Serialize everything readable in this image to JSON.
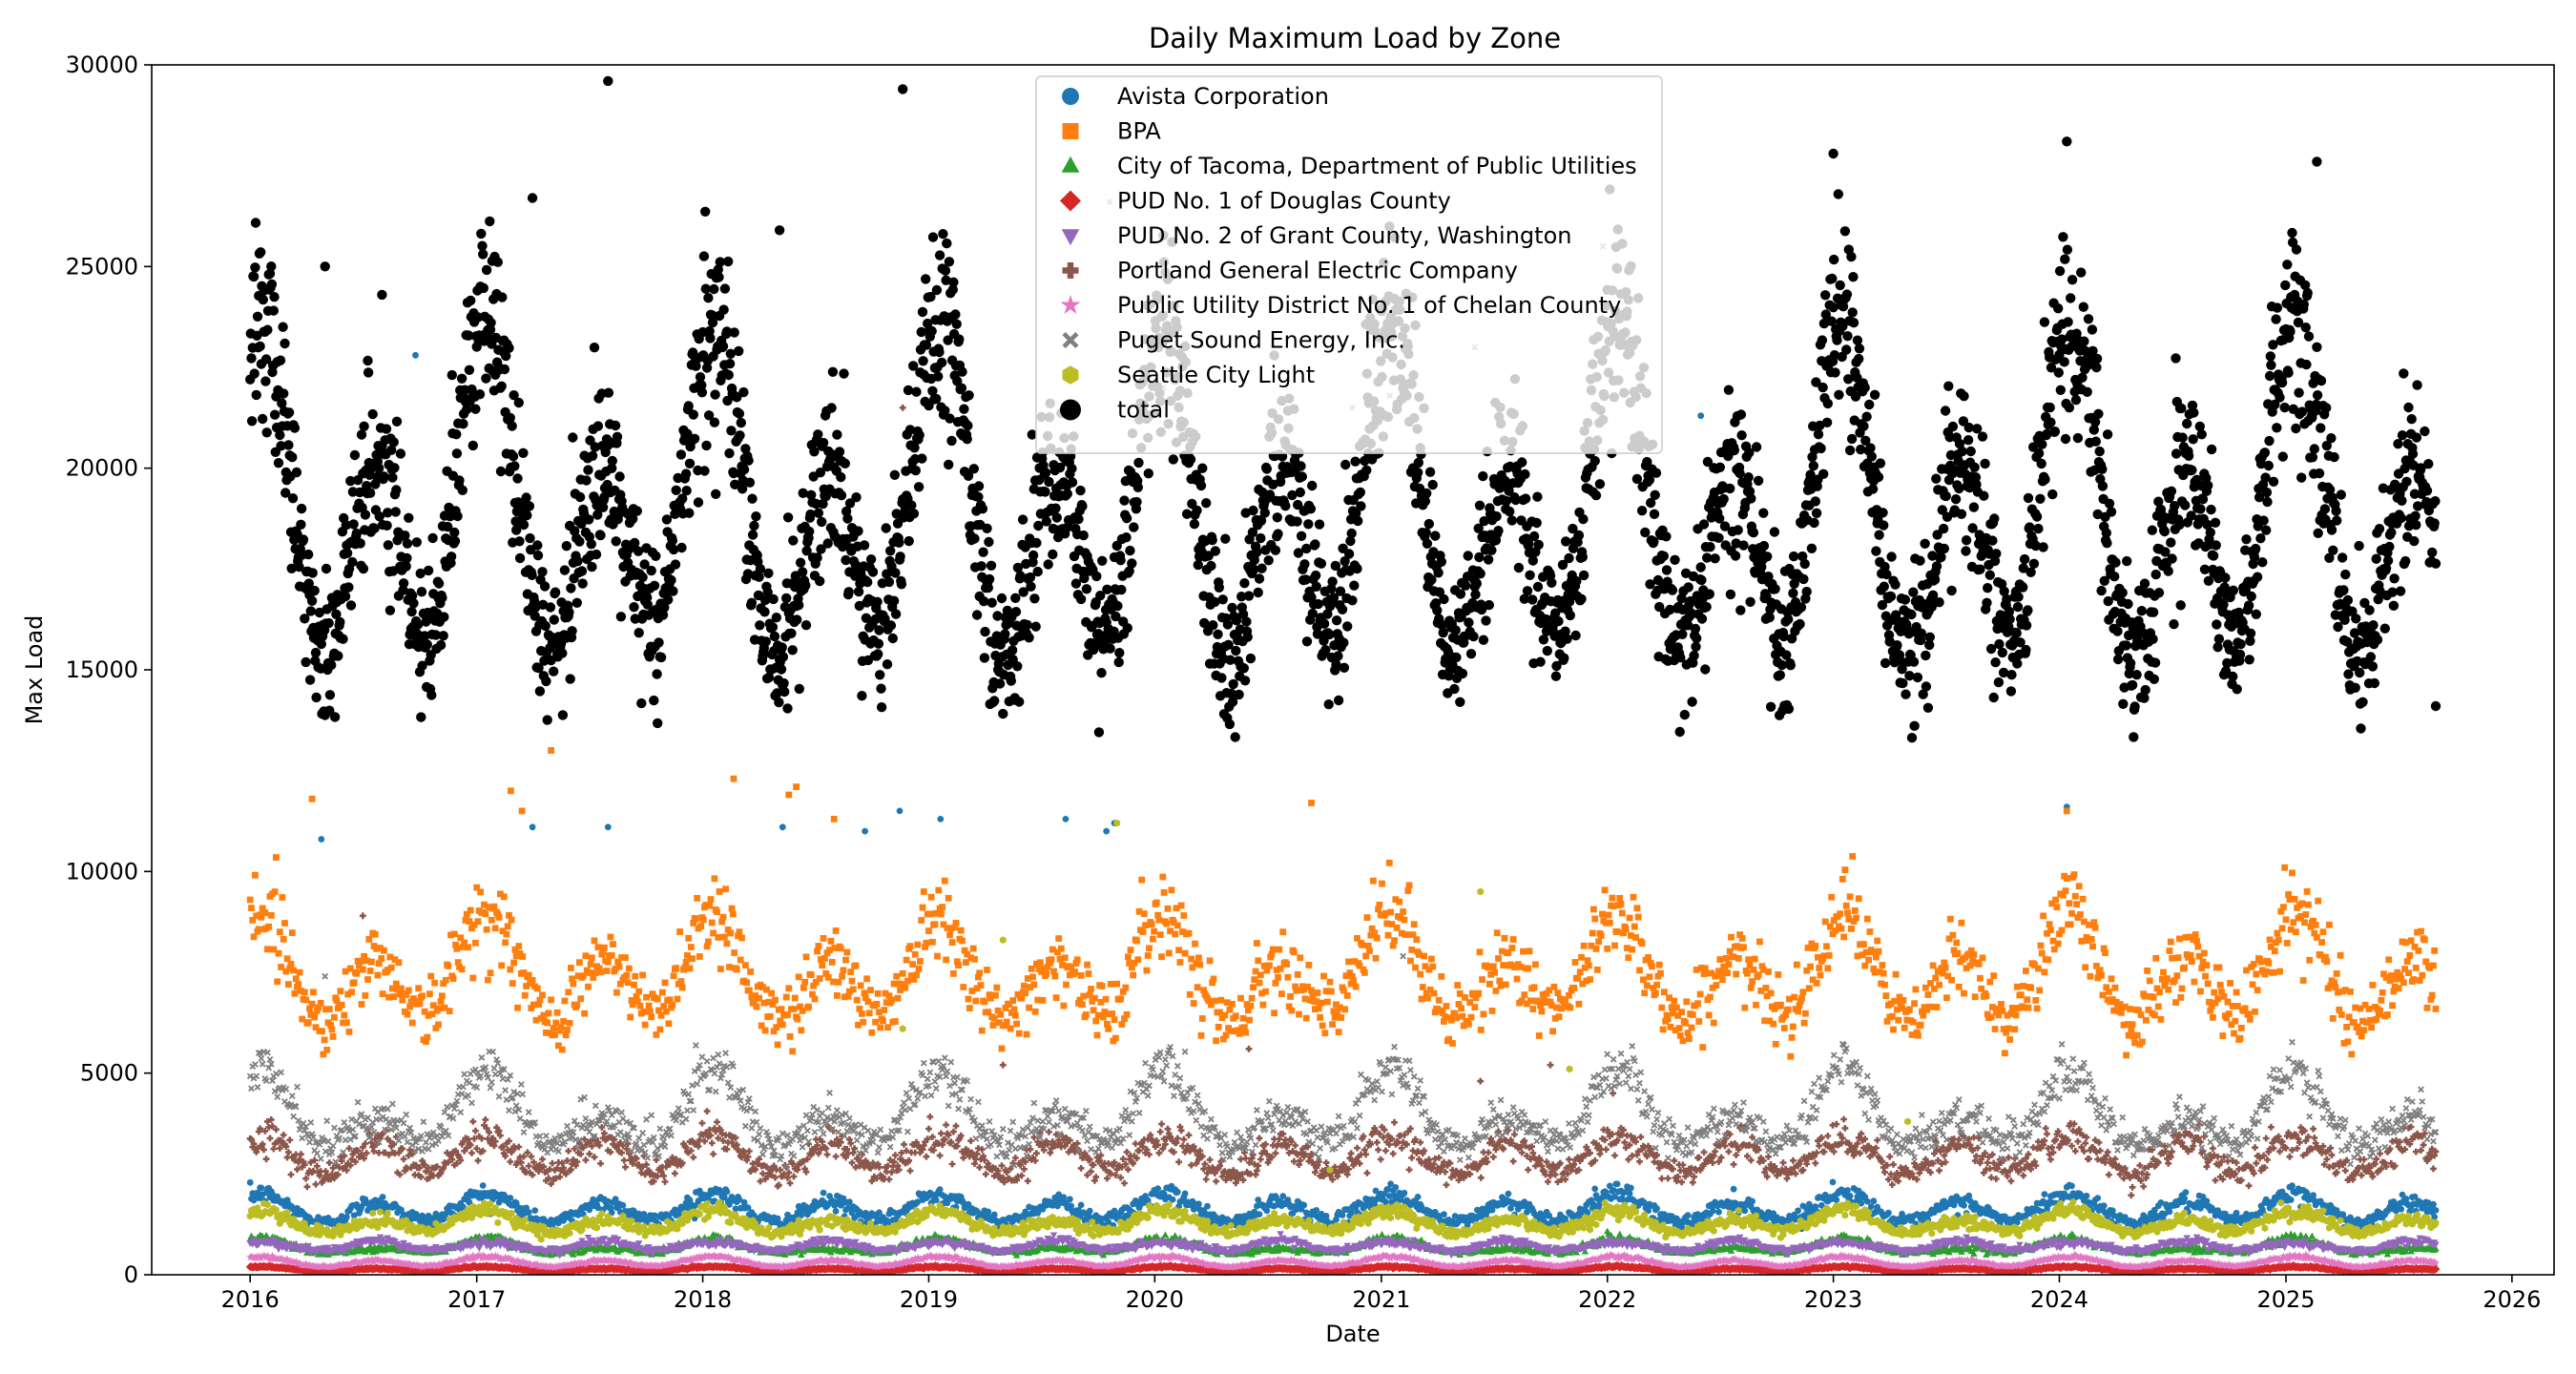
{
  "chart_data": {
    "type": "scatter",
    "title": "Daily Maximum Load by Zone",
    "xlabel": "Date",
    "ylabel": "Max Load",
    "xlim": [
      "2015-07-26",
      "2026-03-10"
    ],
    "ylim": [
      0,
      30000
    ],
    "x_ticks": [
      "2016",
      "2017",
      "2018",
      "2019",
      "2020",
      "2021",
      "2022",
      "2023",
      "2024",
      "2025",
      "2026"
    ],
    "y_ticks": [
      "0",
      "5000",
      "10000",
      "15000",
      "20000",
      "25000",
      "30000"
    ],
    "date_range": [
      "2016-01-01",
      "2025-08-31"
    ],
    "legend_position": "upper center",
    "grid": false,
    "series": [
      {
        "name": "Avista Corporation",
        "marker": "circle",
        "color": "#1f77b4",
        "seasonal_profile": {
          "winter_peak": 2000,
          "spring_trough": 1300,
          "summer_peak": 1800,
          "fall_trough": 1350
        },
        "outliers": [
          [
            "2016-09-24",
            22800
          ],
          [
            "2016-04-25",
            10800
          ],
          [
            "2017-04-01",
            11100
          ],
          [
            "2017-08-01",
            11100
          ],
          [
            "2018-05-10",
            11100
          ],
          [
            "2018-09-20",
            11000
          ],
          [
            "2018-11-15",
            11500
          ],
          [
            "2019-01-20",
            11300
          ],
          [
            "2019-08-10",
            11300
          ],
          [
            "2019-10-15",
            11000
          ],
          [
            "2019-10-28",
            11200
          ],
          [
            "2022-06-01",
            21300
          ],
          [
            "2024-01-13",
            11600
          ]
        ]
      },
      {
        "name": "BPA",
        "marker": "square",
        "color": "#ff7f0e",
        "seasonal_profile": {
          "winter_peak": 9000,
          "spring_trough": 6300,
          "summer_peak": 7800,
          "fall_trough": 6500
        },
        "outliers": [
          [
            "2016-04-10",
            11800
          ],
          [
            "2017-02-25",
            12000
          ],
          [
            "2017-03-15",
            11500
          ],
          [
            "2017-05-01",
            13000
          ],
          [
            "2018-02-20",
            12300
          ],
          [
            "2018-05-20",
            11900
          ],
          [
            "2018-06-01",
            12100
          ],
          [
            "2018-08-01",
            11300
          ],
          [
            "2020-09-10",
            11700
          ],
          [
            "2023-12-20",
            22600
          ],
          [
            "2024-01-13",
            11500
          ]
        ]
      },
      {
        "name": "City of Tacoma, Department of Public Utilities",
        "marker": "triangle-up",
        "color": "#2ca02c",
        "seasonal_profile": {
          "winter_peak": 900,
          "spring_trough": 550,
          "summer_peak": 650,
          "fall_trough": 560
        },
        "outliers": []
      },
      {
        "name": "PUD No. 1 of Douglas County",
        "marker": "diamond",
        "color": "#d62728",
        "seasonal_profile": {
          "winter_peak": 200,
          "spring_trough": 90,
          "summer_peak": 150,
          "fall_trough": 100
        },
        "outliers": []
      },
      {
        "name": "PUD No. 2 of Grant County, Washington",
        "marker": "triangle-down",
        "color": "#9467bd",
        "seasonal_profile": {
          "winter_peak": 800,
          "spring_trough": 600,
          "summer_peak": 850,
          "fall_trough": 620
        },
        "outliers": []
      },
      {
        "name": "Portland General Electric Company",
        "marker": "plus",
        "color": "#8c564b",
        "seasonal_profile": {
          "winter_peak": 3400,
          "spring_trough": 2500,
          "summer_peak": 3300,
          "fall_trough": 2550
        },
        "outliers": [
          [
            "2016-07-01",
            8900
          ],
          [
            "2018-11-20",
            21500
          ],
          [
            "2019-05-01",
            5200
          ],
          [
            "2020-06-01",
            5600
          ],
          [
            "2021-06-10",
            4800
          ],
          [
            "2021-10-01",
            5200
          ],
          [
            "2022-01-10",
            4500
          ]
        ]
      },
      {
        "name": "Public Utility District No. 1 of Chelan County",
        "marker": "star",
        "color": "#e377c2",
        "seasonal_profile": {
          "winter_peak": 450,
          "spring_trough": 200,
          "summer_peak": 350,
          "fall_trough": 220
        },
        "outliers": []
      },
      {
        "name": "Puget Sound Energy, Inc.",
        "marker": "x",
        "color": "#7f7f7f",
        "seasonal_profile": {
          "winter_peak": 5100,
          "spring_trough": 3200,
          "summer_peak": 3900,
          "fall_trough": 3300
        },
        "outliers": [
          [
            "2016-05-01",
            7400
          ],
          [
            "2019-10-20",
            26600
          ],
          [
            "2020-01-15",
            22000
          ],
          [
            "2020-08-05",
            21000
          ],
          [
            "2020-11-15",
            21500
          ],
          [
            "2021-01-15",
            21800
          ],
          [
            "2021-02-05",
            7900
          ],
          [
            "2021-06-01",
            23000
          ],
          [
            "2021-12-25",
            25500
          ],
          [
            "2022-01-05",
            24000
          ]
        ]
      },
      {
        "name": "Seattle City Light",
        "marker": "hexagon",
        "color": "#bcbd22",
        "seasonal_profile": {
          "winter_peak": 1600,
          "spring_trough": 1050,
          "summer_peak": 1350,
          "fall_trough": 1100
        },
        "outliers": [
          [
            "2018-11-20",
            6100
          ],
          [
            "2019-05-01",
            8300
          ],
          [
            "2019-11-01",
            11200
          ],
          [
            "2020-10-10",
            2600
          ],
          [
            "2021-06-10",
            9500
          ],
          [
            "2021-11-01",
            5100
          ],
          [
            "2023-05-01",
            3800
          ]
        ]
      },
      {
        "name": "total",
        "marker": "circle-large",
        "color": "#000000",
        "seasonal_profile": {
          "winter_peak": 23500,
          "spring_trough": 15500,
          "summer_peak": 20000,
          "fall_trough": 16000
        },
        "outliers": [
          [
            "2016-05-01",
            25000
          ],
          [
            "2016-08-01",
            24300
          ],
          [
            "2017-04-01",
            26700
          ],
          [
            "2017-08-01",
            29600
          ],
          [
            "2018-05-05",
            25900
          ],
          [
            "2018-11-20",
            29400
          ],
          [
            "2023-01-01",
            27800
          ],
          [
            "2024-01-13",
            28100
          ],
          [
            "2025-02-20",
            27600
          ],
          [
            "2025-08-31",
            14100
          ]
        ]
      }
    ]
  }
}
